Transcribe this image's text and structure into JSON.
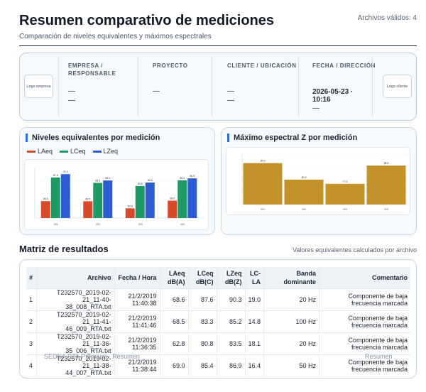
{
  "header": {
    "title": "Resumen comparativo de mediciones",
    "valid_files": "Archivos válidos: 4",
    "subtitle": "Comparación de niveles equivalentes y máximos espectrales"
  },
  "info": {
    "logo_left": "Logo empresa",
    "logo_right": "Logo cliente",
    "fields": [
      {
        "label": "EMPRESA / RESPONSABLE",
        "value1": "—",
        "value2": "—"
      },
      {
        "label": "PROYECTO",
        "value1": "—"
      },
      {
        "label": "CLIENTE / UBICACIÓN",
        "value1": "—",
        "value2": "—"
      },
      {
        "label": "FECHA / DIRECCIÓN",
        "value1": "2026-05-23 · 10:16",
        "value2": "—"
      }
    ]
  },
  "colors": {
    "laeq": "#d94a2b",
    "lceq": "#1f9a64",
    "lzeq": "#2d5bd1",
    "max_z": "#c4922a",
    "accent": "#2f6fd6"
  },
  "charts": {
    "levels_title": "Niveles equivalentes por medición",
    "max_title": "Máximo espectral Z por medición"
  },
  "chart_data": [
    {
      "type": "bar",
      "title": "Niveles equivalentes por medición",
      "categories": [
        "001",
        "002",
        "003",
        "004"
      ],
      "series": [
        {
          "name": "LAeq",
          "values": [
            68.6,
            68.5,
            62.8,
            69.0
          ]
        },
        {
          "name": "LCeq",
          "values": [
            87.6,
            83.3,
            80.8,
            85.4
          ]
        },
        {
          "name": "LZeq",
          "values": [
            90.3,
            85.2,
            83.5,
            86.9
          ]
        }
      ],
      "ylim": [
        55,
        95
      ],
      "legend": "top-left"
    },
    {
      "type": "bar",
      "title": "Máximo espectral Z por medición",
      "categories": [
        "001",
        "002",
        "003",
        "004"
      ],
      "values": [
        90.0,
        80.0,
        77.5,
        88.5
      ],
      "ylim": [
        65,
        95
      ]
    }
  ],
  "table": {
    "section_title": "Matriz de resultados",
    "note": "Valores equivalentes calculados por archivo",
    "headers": [
      "#",
      "Archivo",
      "Fecha / Hora",
      "LAeq dB(A)",
      "LCeq dB(C)",
      "LZeq dB(Z)",
      "LC-LA",
      "Banda dominante",
      "Comentario"
    ],
    "rows": [
      [
        "1",
        "T232570_2019-02-21_11-40-38_008_RTA.txt",
        "21/2/2019 11:40:38",
        "68.6",
        "87.6",
        "90.3",
        "19.0",
        "20 Hz",
        "Componente de baja frecuencia marcada"
      ],
      [
        "2",
        "T232570_2019-02-21_11-41-46_009_RTA.txt",
        "21/2/2019 11:41:46",
        "68.5",
        "83.3",
        "85.2",
        "14.8",
        "100 Hz",
        "Componente de baja frecuencia marcada"
      ],
      [
        "3",
        "T232570_2019-02-21_11-36-35_006_RTA.txt",
        "21/2/2019 11:36:35",
        "62.8",
        "80.8",
        "83.5",
        "18.1",
        "20 Hz",
        "Componente de baja frecuencia marcada"
      ],
      [
        "4",
        "T232570_2019-02-21_11-38-44_007_RTA.txt",
        "21/2/2019 11:38:44",
        "69.0",
        "85.4",
        "86.9",
        "16.4",
        "50 Hz",
        "Componente de baja frecuencia marcada"
      ]
    ]
  },
  "footer": {
    "left": "SEDNA RTA Premium · Resumen",
    "right": "Resumen"
  }
}
